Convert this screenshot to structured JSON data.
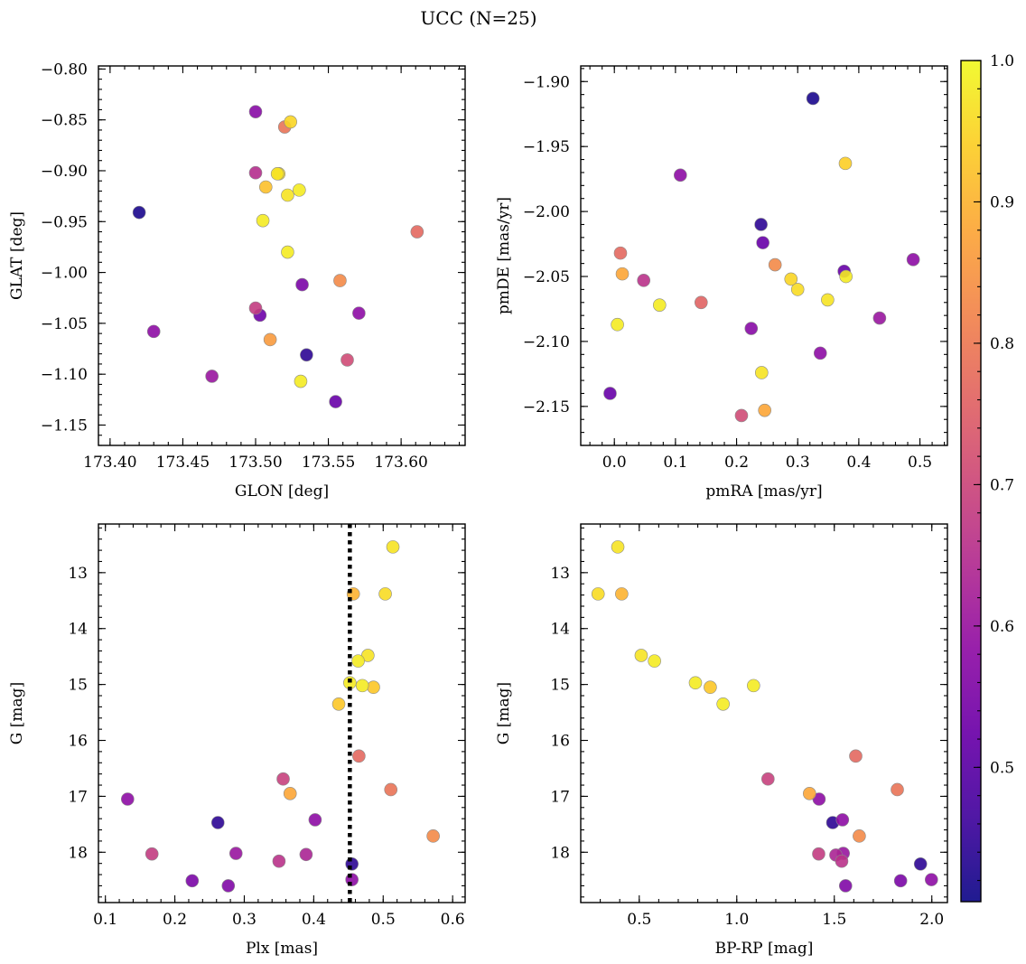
{
  "figure_title": "UCC (N=25)",
  "colorbar": {
    "range": [
      0.405,
      1.0
    ],
    "ticks": [
      0.5,
      0.6,
      0.7,
      0.8,
      0.9,
      1.0
    ],
    "tick_labels": [
      "0.5",
      "0.6",
      "0.7",
      "0.8",
      "0.9",
      "1.0"
    ],
    "colormap": "plasma"
  },
  "chart_data": [
    {
      "type": "scatter",
      "xlabel": "GLON [deg]",
      "ylabel": "GLAT [deg]",
      "xlim": [
        173.392,
        173.644
      ],
      "ylim": [
        -1.17,
        -0.797
      ],
      "x_ticks": [
        173.4,
        173.45,
        173.5,
        173.55,
        173.6
      ],
      "x_tick_labels": [
        "173.40",
        "173.45",
        "173.50",
        "173.55",
        "173.60"
      ],
      "y_ticks": [
        -0.8,
        -0.85,
        -0.9,
        -0.95,
        -1.0,
        -1.05,
        -1.1,
        -1.15
      ],
      "y_tick_labels": [
        "−0.80",
        "−0.85",
        "−0.90",
        "−0.95",
        "−1.00",
        "−1.05",
        "−1.10",
        "−1.15"
      ],
      "points": [
        {
          "x": 173.42,
          "y": -0.941,
          "c": 0.42
        },
        {
          "x": 173.43,
          "y": -1.058,
          "c": 0.58
        },
        {
          "x": 173.47,
          "y": -1.102,
          "c": 0.6
        },
        {
          "x": 173.5,
          "y": -0.842,
          "c": 0.57
        },
        {
          "x": 173.5,
          "y": -0.902,
          "c": 0.65
        },
        {
          "x": 173.5,
          "y": -1.035,
          "c": 0.68
        },
        {
          "x": 173.503,
          "y": -1.042,
          "c": 0.53
        },
        {
          "x": 173.505,
          "y": -0.949,
          "c": 0.98
        },
        {
          "x": 173.507,
          "y": -0.916,
          "c": 0.92
        },
        {
          "x": 173.51,
          "y": -1.066,
          "c": 0.86
        },
        {
          "x": 173.515,
          "y": -0.903,
          "c": 0.97
        },
        {
          "x": 173.516,
          "y": -0.903,
          "c": 0.96
        },
        {
          "x": 173.52,
          "y": -0.857,
          "c": 0.79
        },
        {
          "x": 173.522,
          "y": -0.924,
          "c": 0.97
        },
        {
          "x": 173.524,
          "y": -0.852,
          "c": 0.95
        },
        {
          "x": 173.522,
          "y": -0.98,
          "c": 0.98
        },
        {
          "x": 173.53,
          "y": -0.919,
          "c": 0.98
        },
        {
          "x": 173.531,
          "y": -1.107,
          "c": 0.98
        },
        {
          "x": 173.532,
          "y": -1.012,
          "c": 0.55
        },
        {
          "x": 173.535,
          "y": -1.081,
          "c": 0.44
        },
        {
          "x": 173.555,
          "y": -1.127,
          "c": 0.52
        },
        {
          "x": 173.558,
          "y": -1.008,
          "c": 0.83
        },
        {
          "x": 173.563,
          "y": -1.086,
          "c": 0.71
        },
        {
          "x": 173.571,
          "y": -1.04,
          "c": 0.58
        },
        {
          "x": 173.611,
          "y": -0.96,
          "c": 0.77
        }
      ]
    },
    {
      "type": "scatter",
      "xlabel": "pmRA [mas/yr]",
      "ylabel": "pmDE [mas/yr]",
      "xlim": [
        -0.055,
        0.545
      ],
      "ylim": [
        -2.18,
        -1.888
      ],
      "x_ticks": [
        0.0,
        0.1,
        0.2,
        0.3,
        0.4,
        0.5
      ],
      "x_tick_labels": [
        "0.0",
        "0.1",
        "0.2",
        "0.3",
        "0.4",
        "0.5"
      ],
      "y_ticks": [
        -1.9,
        -1.95,
        -2.0,
        -2.05,
        -2.1,
        -2.15
      ],
      "y_tick_labels": [
        "−1.90",
        "−1.95",
        "−2.00",
        "−2.05",
        "−2.10",
        "−2.15"
      ],
      "points": [
        {
          "x": -0.007,
          "y": -2.14,
          "c": 0.52
        },
        {
          "x": 0.005,
          "y": -2.087,
          "c": 0.98
        },
        {
          "x": 0.01,
          "y": -2.032,
          "c": 0.77
        },
        {
          "x": 0.013,
          "y": -2.048,
          "c": 0.88
        },
        {
          "x": 0.048,
          "y": -2.053,
          "c": 0.66
        },
        {
          "x": 0.074,
          "y": -2.072,
          "c": 0.98
        },
        {
          "x": 0.108,
          "y": -1.972,
          "c": 0.58
        },
        {
          "x": 0.142,
          "y": -2.07,
          "c": 0.76
        },
        {
          "x": 0.208,
          "y": -2.157,
          "c": 0.71
        },
        {
          "x": 0.224,
          "y": -2.09,
          "c": 0.57
        },
        {
          "x": 0.24,
          "y": -2.01,
          "c": 0.44
        },
        {
          "x": 0.241,
          "y": -2.124,
          "c": 0.97
        },
        {
          "x": 0.243,
          "y": -2.024,
          "c": 0.52
        },
        {
          "x": 0.246,
          "y": -2.153,
          "c": 0.88
        },
        {
          "x": 0.263,
          "y": -2.041,
          "c": 0.83
        },
        {
          "x": 0.289,
          "y": -2.052,
          "c": 0.95
        },
        {
          "x": 0.3,
          "y": -2.06,
          "c": 0.96
        },
        {
          "x": 0.325,
          "y": -1.913,
          "c": 0.42
        },
        {
          "x": 0.337,
          "y": -2.109,
          "c": 0.58
        },
        {
          "x": 0.349,
          "y": -2.068,
          "c": 0.97
        },
        {
          "x": 0.376,
          "y": -2.046,
          "c": 0.52
        },
        {
          "x": 0.378,
          "y": -1.963,
          "c": 0.94
        },
        {
          "x": 0.379,
          "y": -2.05,
          "c": 0.98
        },
        {
          "x": 0.434,
          "y": -2.082,
          "c": 0.6
        },
        {
          "x": 0.489,
          "y": -2.037,
          "c": 0.58
        }
      ]
    },
    {
      "type": "scatter",
      "xlabel": "Plx [mas]",
      "ylabel": "G [mag]",
      "xlim": [
        0.09,
        0.618
      ],
      "ylim": [
        18.9,
        12.13
      ],
      "x_ticks": [
        0.1,
        0.2,
        0.3,
        0.4,
        0.5,
        0.6
      ],
      "x_tick_labels": [
        "0.1",
        "0.2",
        "0.3",
        "0.4",
        "0.5",
        "0.6"
      ],
      "y_ticks": [
        13,
        14,
        15,
        16,
        17,
        18
      ],
      "y_tick_labels": [
        "13",
        "14",
        "15",
        "16",
        "17",
        "18"
      ],
      "vline": 0.452,
      "points": [
        {
          "x": 0.132,
          "y": 17.05,
          "c": 0.58
        },
        {
          "x": 0.167,
          "y": 18.03,
          "c": 0.68
        },
        {
          "x": 0.225,
          "y": 18.51,
          "c": 0.55
        },
        {
          "x": 0.262,
          "y": 17.47,
          "c": 0.44
        },
        {
          "x": 0.277,
          "y": 18.6,
          "c": 0.56
        },
        {
          "x": 0.288,
          "y": 18.02,
          "c": 0.6
        },
        {
          "x": 0.35,
          "y": 18.16,
          "c": 0.66
        },
        {
          "x": 0.356,
          "y": 16.69,
          "c": 0.69
        },
        {
          "x": 0.366,
          "y": 16.95,
          "c": 0.88
        },
        {
          "x": 0.389,
          "y": 18.04,
          "c": 0.63
        },
        {
          "x": 0.402,
          "y": 17.42,
          "c": 0.58
        },
        {
          "x": 0.436,
          "y": 15.35,
          "c": 0.93
        },
        {
          "x": 0.452,
          "y": 14.97,
          "c": 0.98
        },
        {
          "x": 0.455,
          "y": 18.21,
          "c": 0.44
        },
        {
          "x": 0.455,
          "y": 18.49,
          "c": 0.58
        },
        {
          "x": 0.457,
          "y": 13.38,
          "c": 0.9
        },
        {
          "x": 0.464,
          "y": 14.58,
          "c": 0.98
        },
        {
          "x": 0.465,
          "y": 16.28,
          "c": 0.77
        },
        {
          "x": 0.47,
          "y": 15.02,
          "c": 0.98
        },
        {
          "x": 0.478,
          "y": 14.48,
          "c": 0.97
        },
        {
          "x": 0.486,
          "y": 15.05,
          "c": 0.93
        },
        {
          "x": 0.503,
          "y": 13.38,
          "c": 0.96
        },
        {
          "x": 0.511,
          "y": 16.88,
          "c": 0.79
        },
        {
          "x": 0.514,
          "y": 12.54,
          "c": 0.97
        },
        {
          "x": 0.572,
          "y": 17.71,
          "c": 0.83
        }
      ]
    },
    {
      "type": "scatter",
      "xlabel": "BP-RP [mag]",
      "ylabel": "G [mag]",
      "xlim": [
        0.2,
        2.08
      ],
      "ylim": [
        18.9,
        12.13
      ],
      "x_ticks": [
        0.5,
        1.0,
        1.5,
        2.0
      ],
      "x_tick_labels": [
        "0.5",
        "1.0",
        "1.5",
        "2.0"
      ],
      "y_ticks": [
        13,
        14,
        15,
        16,
        17,
        18
      ],
      "y_tick_labels": [
        "13",
        "14",
        "15",
        "16",
        "17",
        "18"
      ],
      "points": [
        {
          "x": 0.289,
          "y": 13.38,
          "c": 0.96
        },
        {
          "x": 0.39,
          "y": 12.54,
          "c": 0.97
        },
        {
          "x": 0.41,
          "y": 13.38,
          "c": 0.9
        },
        {
          "x": 0.51,
          "y": 14.48,
          "c": 0.97
        },
        {
          "x": 0.578,
          "y": 14.58,
          "c": 0.98
        },
        {
          "x": 0.788,
          "y": 14.97,
          "c": 0.98
        },
        {
          "x": 0.864,
          "y": 15.05,
          "c": 0.93
        },
        {
          "x": 0.93,
          "y": 15.35,
          "c": 0.98
        },
        {
          "x": 1.086,
          "y": 15.02,
          "c": 0.98
        },
        {
          "x": 1.16,
          "y": 16.69,
          "c": 0.69
        },
        {
          "x": 1.373,
          "y": 16.95,
          "c": 0.88
        },
        {
          "x": 1.422,
          "y": 17.05,
          "c": 0.58
        },
        {
          "x": 1.42,
          "y": 18.03,
          "c": 0.68
        },
        {
          "x": 1.492,
          "y": 17.47,
          "c": 0.44
        },
        {
          "x": 1.508,
          "y": 18.05,
          "c": 0.63
        },
        {
          "x": 1.538,
          "y": 18.16,
          "c": 0.66
        },
        {
          "x": 1.542,
          "y": 17.42,
          "c": 0.58
        },
        {
          "x": 1.546,
          "y": 18.02,
          "c": 0.6
        },
        {
          "x": 1.558,
          "y": 18.6,
          "c": 0.56
        },
        {
          "x": 1.61,
          "y": 16.28,
          "c": 0.77
        },
        {
          "x": 1.628,
          "y": 17.71,
          "c": 0.83
        },
        {
          "x": 1.823,
          "y": 16.88,
          "c": 0.79
        },
        {
          "x": 1.84,
          "y": 18.51,
          "c": 0.55
        },
        {
          "x": 1.942,
          "y": 18.21,
          "c": 0.44
        },
        {
          "x": 1.998,
          "y": 18.49,
          "c": 0.58
        }
      ]
    }
  ]
}
